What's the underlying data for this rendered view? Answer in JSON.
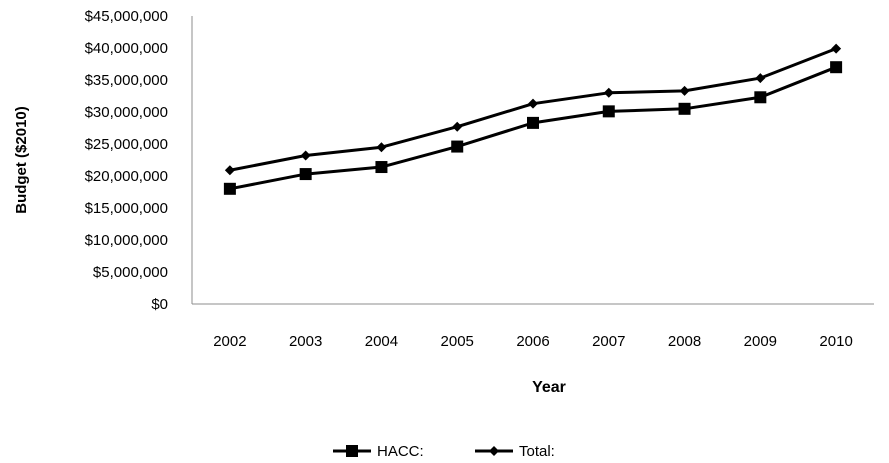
{
  "chart_data": {
    "type": "line",
    "title": "",
    "xlabel": "Year",
    "ylabel": "Budget ($2010)",
    "categories": [
      "2002",
      "2003",
      "2004",
      "2005",
      "2006",
      "2007",
      "2008",
      "2009",
      "2010"
    ],
    "ylim": [
      0,
      45000000
    ],
    "yticks": [
      0,
      5000000,
      10000000,
      15000000,
      20000000,
      25000000,
      30000000,
      35000000,
      40000000,
      45000000
    ],
    "ytick_labels": [
      "$0",
      "$5,000,000",
      "$10,000,000",
      "$15,000,000",
      "$20,000,000",
      "$25,000,000",
      "$30,000,000",
      "$35,000,000",
      "$40,000,000",
      "$45,000,000"
    ],
    "grid": false,
    "legend_position": "bottom",
    "series": [
      {
        "name": "HACC:",
        "marker": "square",
        "color": "#000000",
        "values": [
          18000000,
          20300000,
          21400000,
          24600000,
          28300000,
          30100000,
          30500000,
          32300000,
          37000000
        ]
      },
      {
        "name": "Total:",
        "marker": "diamond",
        "color": "#000000",
        "values": [
          20900000,
          23200000,
          24500000,
          27700000,
          31300000,
          33000000,
          33300000,
          35300000,
          39900000
        ]
      }
    ]
  }
}
